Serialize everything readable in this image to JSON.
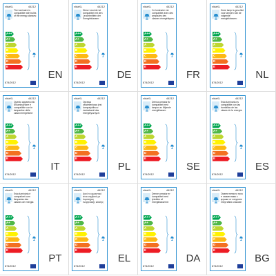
{
  "brand": "vidaXL",
  "model": "44212",
  "regulation": "874/2012",
  "classes": [
    "A++",
    "A+",
    "A",
    "B",
    "C",
    "D",
    "E"
  ],
  "labels": [
    {
      "code": "EN",
      "text": "The luminaire is compatible with bulbs of the energy classes:"
    },
    {
      "code": "DE",
      "text": "Diese Leuchte ist kompatibel mit den Leuchtmitteln der Energieklassen:"
    },
    {
      "code": "FR",
      "text": "Ce luminaire est compatible avec des ampoules des classes énergétiques:"
    },
    {
      "code": "NL",
      "text": "Deze lamp is geschikt voor lampen van de volgende energieklassen:"
    },
    {
      "code": "IT",
      "text": "Questo apparecchio d'illuminazione è compatibile con le lampadine delle classi energetiche:"
    },
    {
      "code": "PL",
      "text": "Oprawa oświetleniowa jest kompatybilna z żarówkami klas energetycznych:"
    },
    {
      "code": "SE",
      "text": "Denna armatur är kompatibel med lampor av följande energiklasser:"
    },
    {
      "code": "ES",
      "text": "Esta luminaria es compatible con las bombillas de las clases de la energía:"
    },
    {
      "code": "PT",
      "text": "Esta luminária é compatível com lâmpadas das classes de energia:"
    },
    {
      "code": "EL",
      "text": "Αυτό το φωτιστικό είναι συμβατό με λαμπτήρες ενεργειακής κλάσης:"
    },
    {
      "code": "DA",
      "text": "Denne armatur er kompatibel med lyskilder af energiklasserne:"
    },
    {
      "code": "BG",
      "text": "Осветителното тяло е съвместимо с крушки от следните енергийни класове:"
    }
  ]
}
